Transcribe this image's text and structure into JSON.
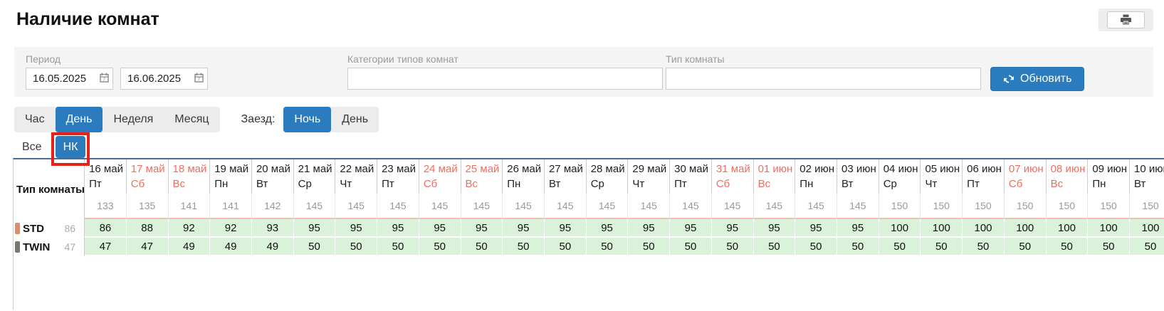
{
  "page": {
    "title": "Наличие комнат"
  },
  "icons": {
    "print": "printer-icon",
    "calendar": "calendar-icon",
    "refresh": "refresh-icon"
  },
  "colors": {
    "accent_blue": "#2a7cbf",
    "weekend_red": "#f06e60",
    "cell_green": "#daf1da",
    "annotation_red": "#e62117",
    "totals_underline": "#f4beb4",
    "table_top_border": "#4a6d94"
  },
  "filters": {
    "period": {
      "label": "Период",
      "from": "16.05.2025",
      "to": "16.06.2025"
    },
    "category": {
      "label": "Категории типов комнат",
      "value": ""
    },
    "room_type": {
      "label": "Тип комнаты",
      "value": ""
    },
    "refresh_label": "Обновить"
  },
  "scale_tabs": {
    "items": [
      "Час",
      "День",
      "Неделя",
      "Месяц"
    ],
    "active": "День"
  },
  "arrival_tabs": {
    "label": "Заезд:",
    "items": [
      "Ночь",
      "День"
    ],
    "active": "Ночь"
  },
  "view_tabs": {
    "items": [
      "Все",
      "НК"
    ],
    "active": "НК",
    "highlighted": "НК"
  },
  "table": {
    "room_type_header": "Тип комнаты",
    "columns": [
      {
        "date": "16 май",
        "weekday": "Пт",
        "weekend": false,
        "total": 133
      },
      {
        "date": "17 май",
        "weekday": "Сб",
        "weekend": true,
        "total": 135
      },
      {
        "date": "18 май",
        "weekday": "Вс",
        "weekend": true,
        "total": 141
      },
      {
        "date": "19 май",
        "weekday": "Пн",
        "weekend": false,
        "total": 141
      },
      {
        "date": "20 май",
        "weekday": "Вт",
        "weekend": false,
        "total": 142
      },
      {
        "date": "21 май",
        "weekday": "Ср",
        "weekend": false,
        "total": 145
      },
      {
        "date": "22 май",
        "weekday": "Чт",
        "weekend": false,
        "total": 145
      },
      {
        "date": "23 май",
        "weekday": "Пт",
        "weekend": false,
        "total": 145
      },
      {
        "date": "24 май",
        "weekday": "Сб",
        "weekend": true,
        "total": 145
      },
      {
        "date": "25 май",
        "weekday": "Вс",
        "weekend": true,
        "total": 145
      },
      {
        "date": "26 май",
        "weekday": "Пн",
        "weekend": false,
        "total": 145
      },
      {
        "date": "27 май",
        "weekday": "Вт",
        "weekend": false,
        "total": 145
      },
      {
        "date": "28 май",
        "weekday": "Ср",
        "weekend": false,
        "total": 145
      },
      {
        "date": "29 май",
        "weekday": "Чт",
        "weekend": false,
        "total": 145
      },
      {
        "date": "30 май",
        "weekday": "Пт",
        "weekend": false,
        "total": 145
      },
      {
        "date": "31 май",
        "weekday": "Сб",
        "weekend": true,
        "total": 145
      },
      {
        "date": "01 июн",
        "weekday": "Вс",
        "weekend": true,
        "total": 145
      },
      {
        "date": "02 июн",
        "weekday": "Пн",
        "weekend": false,
        "total": 145
      },
      {
        "date": "03 июн",
        "weekday": "Вт",
        "weekend": false,
        "total": 145
      },
      {
        "date": "04 июн",
        "weekday": "Ср",
        "weekend": false,
        "total": 150
      },
      {
        "date": "05 июн",
        "weekday": "Чт",
        "weekend": false,
        "total": 150
      },
      {
        "date": "06 июн",
        "weekday": "Пт",
        "weekend": false,
        "total": 150
      },
      {
        "date": "07 июн",
        "weekday": "Сб",
        "weekend": true,
        "total": 150
      },
      {
        "date": "08 июн",
        "weekday": "Вс",
        "weekend": true,
        "total": 150
      },
      {
        "date": "09 июн",
        "weekday": "Пн",
        "weekend": false,
        "total": 150
      },
      {
        "date": "10 июн",
        "weekday": "Вт",
        "weekend": false,
        "total": 150
      }
    ],
    "rows": [
      {
        "name": "STD",
        "marker_color": "#dd8a6d",
        "count": 86,
        "values": [
          86,
          88,
          92,
          92,
          93,
          95,
          95,
          95,
          95,
          95,
          95,
          95,
          95,
          95,
          95,
          95,
          95,
          95,
          95,
          100,
          100,
          100,
          100,
          100,
          100,
          100
        ]
      },
      {
        "name": "TWIN",
        "marker_color": "#7b776f",
        "count": 47,
        "values": [
          47,
          47,
          49,
          49,
          49,
          50,
          50,
          50,
          50,
          50,
          50,
          50,
          50,
          50,
          50,
          50,
          50,
          50,
          50,
          50,
          50,
          50,
          50,
          50,
          50,
          50
        ]
      }
    ]
  }
}
